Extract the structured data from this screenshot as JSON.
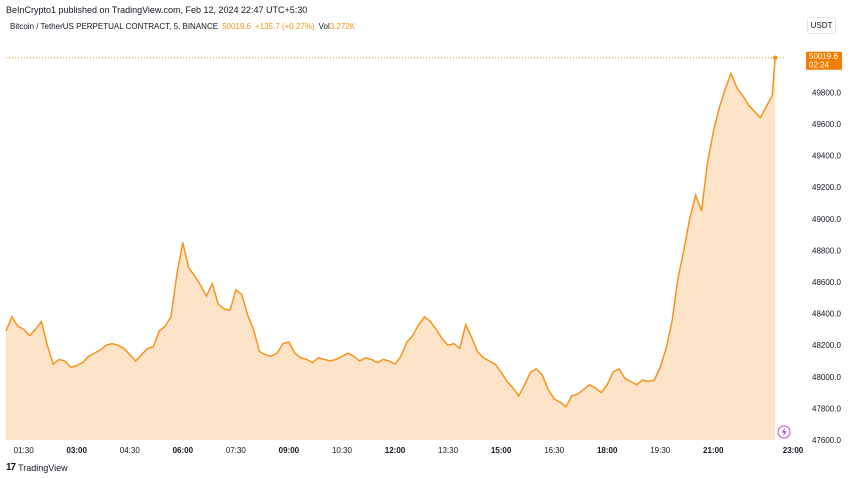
{
  "header": {
    "published_line": "BeInCrypto1 published on TradingView.com, Feb 12, 2024 22:47 UTC+5:30",
    "symbol": "Bitcoin / TetherUS PERPETUAL CONTRACT, 5, BINANCE",
    "last_price": "50019.6",
    "change": "+135.7 (+0.27%)",
    "vol_label": "Vol",
    "vol_value": "3.272K"
  },
  "currency_button": "USDT",
  "price_tag": {
    "price": "50019.6",
    "countdown": "02:24"
  },
  "footer": {
    "brand": "TradingView",
    "logo_icon": "tradingview-logo-icon"
  },
  "colors": {
    "line": "#f7931a",
    "fill": "#fde3c8",
    "tag_bg": "#f57c00"
  },
  "chart_data": {
    "type": "area",
    "series": [
      {
        "x": [
          "01:00",
          "01:10",
          "01:20",
          "01:30",
          "01:40",
          "01:50",
          "02:00",
          "02:10",
          "02:20",
          "02:30",
          "02:40",
          "02:50",
          "03:00",
          "03:10",
          "03:20",
          "03:30",
          "03:40",
          "03:50",
          "04:00",
          "04:10",
          "04:20",
          "04:30",
          "04:40",
          "04:50",
          "05:00",
          "05:10",
          "05:20",
          "05:30",
          "05:40",
          "05:50",
          "06:00",
          "06:10",
          "06:20",
          "06:30",
          "06:40",
          "06:50",
          "07:00",
          "07:10",
          "07:20",
          "07:30",
          "07:40",
          "07:50",
          "08:00",
          "08:10",
          "08:20",
          "08:30",
          "08:40",
          "08:50",
          "09:00",
          "09:10",
          "09:20",
          "09:30",
          "09:40",
          "09:50",
          "10:00",
          "10:10",
          "10:20",
          "10:30",
          "10:40",
          "10:50",
          "11:00",
          "11:10",
          "11:20",
          "11:30",
          "11:40",
          "11:50",
          "12:00",
          "12:10",
          "12:20",
          "12:30",
          "12:40",
          "12:50",
          "13:00",
          "13:10",
          "13:20",
          "13:30",
          "13:40",
          "13:50",
          "14:00",
          "14:10",
          "14:20",
          "14:30",
          "14:40",
          "14:50",
          "15:00",
          "15:10",
          "15:20",
          "15:30",
          "15:40",
          "15:50",
          "16:00",
          "16:10",
          "16:20",
          "16:30",
          "16:40",
          "16:50",
          "17:00",
          "17:10",
          "17:20",
          "17:30",
          "17:40",
          "17:50",
          "18:00",
          "18:10",
          "18:20",
          "18:30",
          "18:40",
          "18:50",
          "19:00",
          "19:10",
          "19:20",
          "19:30",
          "19:40",
          "19:50",
          "20:00",
          "20:10",
          "20:20",
          "20:30",
          "20:40",
          "20:50",
          "21:00",
          "21:10",
          "21:20",
          "21:30",
          "21:40",
          "21:50",
          "22:00",
          "22:10",
          "22:20",
          "22:30",
          "22:40",
          "22:45"
        ],
        "values": [
          48290,
          48380,
          48320,
          48300,
          48260,
          48300,
          48350,
          48200,
          48080,
          48110,
          48100,
          48060,
          48070,
          48090,
          48130,
          48150,
          48170,
          48200,
          48210,
          48200,
          48180,
          48140,
          48100,
          48140,
          48180,
          48190,
          48290,
          48320,
          48380,
          48650,
          48850,
          48690,
          48640,
          48580,
          48510,
          48590,
          48460,
          48430,
          48420,
          48550,
          48520,
          48390,
          48300,
          48160,
          48140,
          48130,
          48150,
          48210,
          48220,
          48150,
          48120,
          48110,
          48090,
          48120,
          48110,
          48100,
          48110,
          48130,
          48150,
          48130,
          48100,
          48120,
          48110,
          48090,
          48110,
          48100,
          48080,
          48130,
          48220,
          48260,
          48330,
          48380,
          48350,
          48300,
          48240,
          48200,
          48210,
          48180,
          48330,
          48250,
          48160,
          48120,
          48100,
          48080,
          48030,
          47970,
          47930,
          47880,
          47950,
          48030,
          48050,
          48010,
          47920,
          47860,
          47840,
          47810,
          47880,
          47890,
          47920,
          47950,
          47930,
          47900,
          47950,
          48030,
          48050,
          47990,
          47970,
          47950,
          47980,
          47970,
          47980,
          48060,
          48180,
          48350,
          48620,
          48800,
          49000,
          49150,
          49050,
          49350,
          49550,
          49700,
          49820,
          49920,
          49830,
          49780,
          49720,
          49680,
          49640,
          49710,
          49780,
          50020
        ]
      }
    ],
    "x_tick_labels": [
      "01:30",
      "03:00",
      "04:30",
      "06:00",
      "07:30",
      "09:00",
      "10:30",
      "12:00",
      "13:30",
      "15:00",
      "16:30",
      "18:00",
      "19:30",
      "21:00",
      "23:00"
    ],
    "x_tick_bold": [
      "03:00",
      "06:00",
      "09:00",
      "12:00",
      "15:00",
      "18:00",
      "21:00",
      "23:00"
    ],
    "y_tick_labels": [
      "49800.0",
      "49600.0",
      "49400.0",
      "49200.0",
      "49000.0",
      "48800.0",
      "48600.0",
      "48400.0",
      "48200.0",
      "48000.0",
      "47800.0",
      "47600.0"
    ],
    "ylim": [
      47600,
      50100
    ],
    "xlim": [
      "01:00",
      "23:00"
    ],
    "last_value_line": 50019.6,
    "grid": false,
    "title": "",
    "xlabel": "",
    "ylabel": ""
  }
}
